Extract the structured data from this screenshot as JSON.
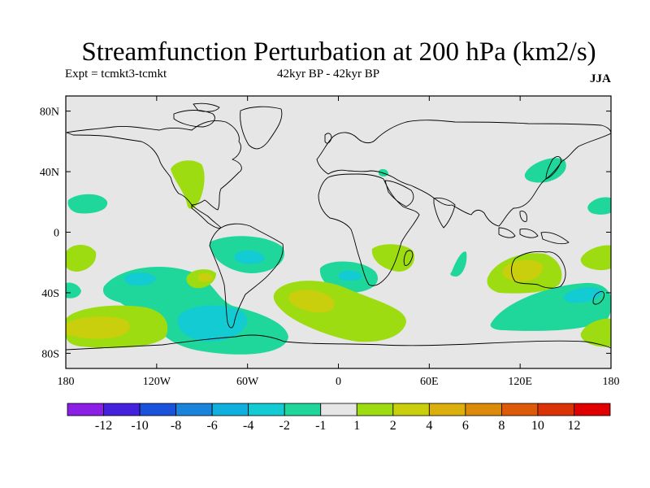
{
  "title": "Streamfunction Perturbation at 200 hPa (km2/s)",
  "left_subtitle": "Expt = tcmkt3-tcmkt",
  "center_subtitle": "42kyr BP - 42kyr BP",
  "season": "JJA",
  "colors": {
    "ocean_background": "#e6e6e6",
    "coastline": "#000000",
    "neg_1_to_2": "#1fd79b",
    "neg_2_to_4": "#13cbd3",
    "pos_1_to_2": "#9ddc10",
    "pos_2_to_4": "#c9cf0c"
  },
  "map": {
    "projection": "cylindrical-equidistant",
    "lon_range": [
      -180,
      180
    ],
    "lat_range": [
      -90,
      90
    ],
    "lon_ticks": [
      "180",
      "120W",
      "60W",
      "0",
      "60E",
      "120E",
      "180"
    ],
    "lat_ticks": [
      "80N",
      "40N",
      "0",
      "40S",
      "80S"
    ],
    "lat_tick_values": [
      80,
      40,
      0,
      -40,
      -80
    ]
  },
  "colorbar": {
    "labels": [
      "-12",
      "-10",
      "-8",
      "-6",
      "-4",
      "-2",
      "-1",
      "1",
      "2",
      "4",
      "6",
      "8",
      "10",
      "12"
    ],
    "boundaries": [
      -12,
      -10,
      -8,
      -6,
      -4,
      -2,
      -1,
      1,
      2,
      4,
      6,
      8,
      10,
      12
    ],
    "colors": [
      "#8b1fe6",
      "#4422dd",
      "#1a52db",
      "#1a84dd",
      "#0fb0dd",
      "#13cbd3",
      "#1fd79b",
      "#e6e6e6",
      "#9ddc10",
      "#c9cf0c",
      "#dcb00c",
      "#dc8a0a",
      "#dc5a08",
      "#dc3208",
      "#e00000"
    ]
  }
}
